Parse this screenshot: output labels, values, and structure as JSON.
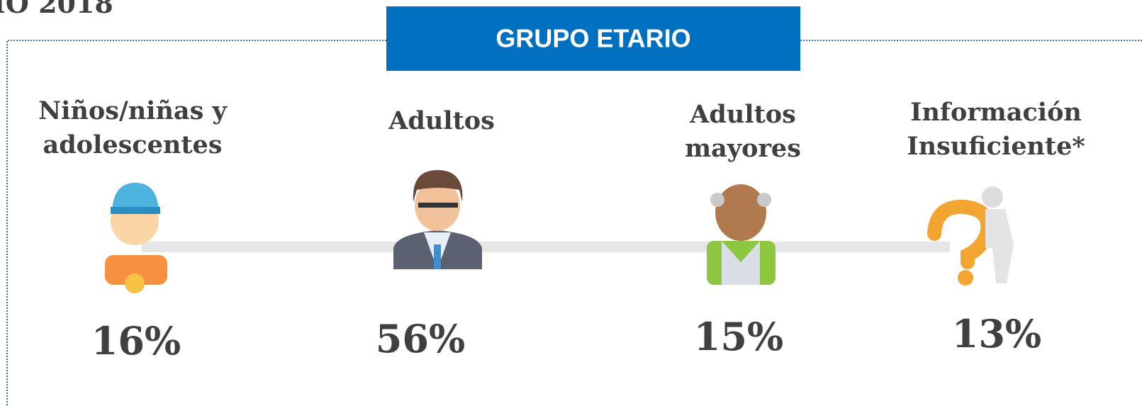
{
  "header_fragment": "IO 2018",
  "title": "GRUPO ETARIO",
  "groups": [
    {
      "label_lines": [
        "Niños/niñas y",
        "adolescentes"
      ],
      "value": "16%"
    },
    {
      "label_lines": [
        "Adultos"
      ],
      "value": "56%"
    },
    {
      "label_lines": [
        "Adultos",
        "mayores"
      ],
      "value": "15%"
    },
    {
      "label_lines": [
        "Información",
        "Insuficiente*"
      ],
      "value": "13%"
    }
  ]
}
